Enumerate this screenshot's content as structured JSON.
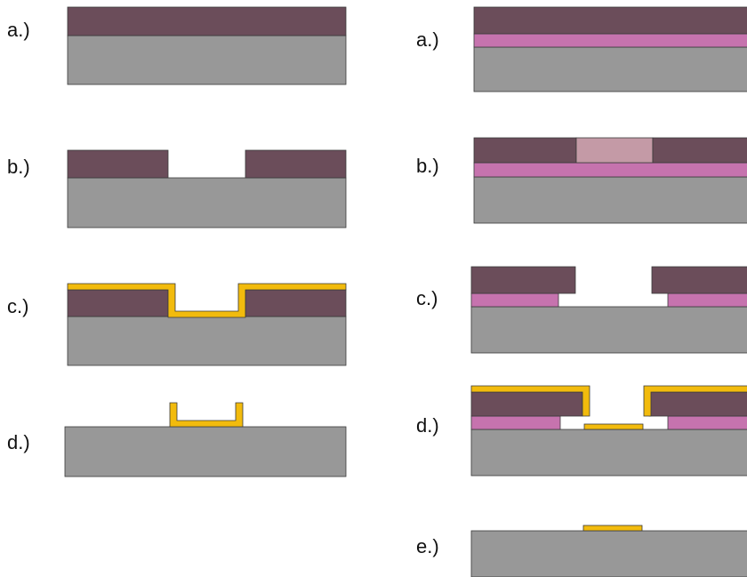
{
  "colors": {
    "substrate": "#989898",
    "resist": "#6b4d5a",
    "resist_exposed": "#c49aa6",
    "underlayer": "#c673ae",
    "metal": "#f2bb0d",
    "outline": "#3a3a3a"
  },
  "left_process": {
    "steps": [
      {
        "label": "a.)"
      },
      {
        "label": "b.)"
      },
      {
        "label": "c.)"
      },
      {
        "label": "d.)"
      }
    ]
  },
  "right_process": {
    "steps": [
      {
        "label": "a.)"
      },
      {
        "label": "b.)"
      },
      {
        "label": "c.)"
      },
      {
        "label": "d.)"
      },
      {
        "label": "e.)"
      }
    ]
  }
}
